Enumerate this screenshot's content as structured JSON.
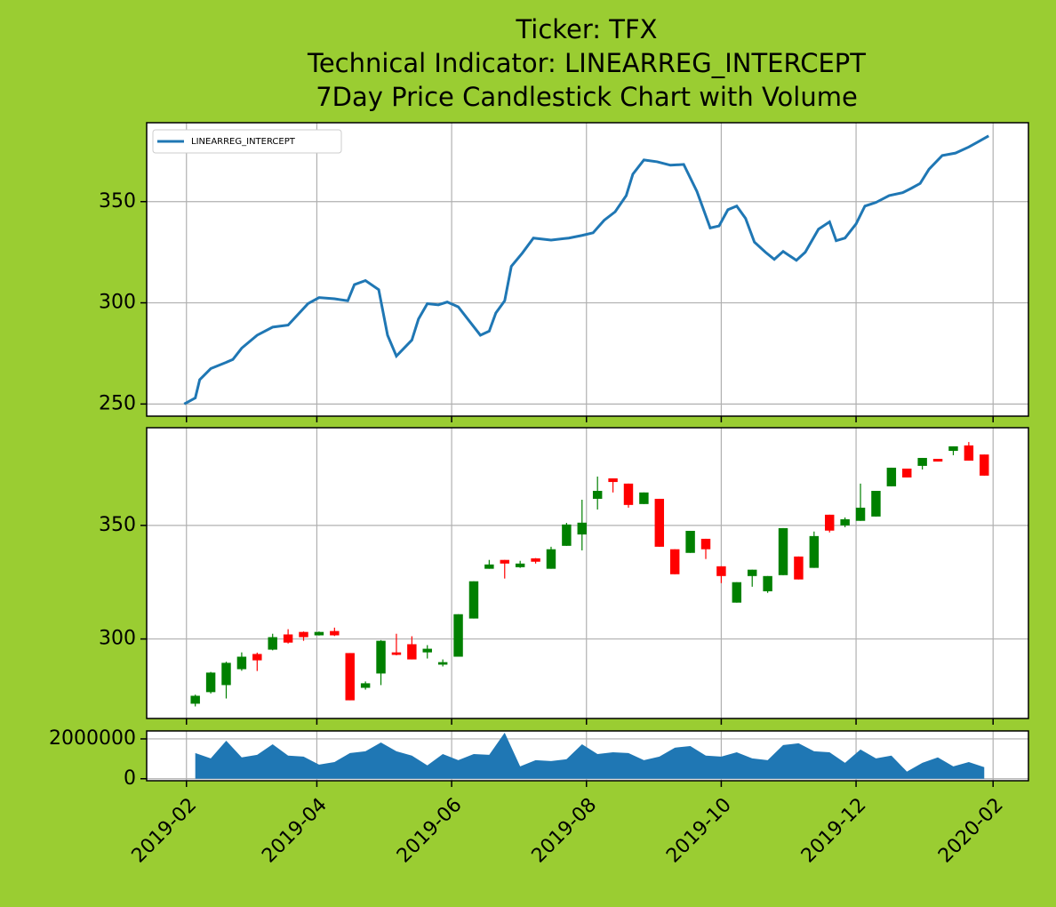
{
  "chart_data": [
    {
      "type": "line",
      "title": [
        "Ticker: TFX",
        "Technical Indicator: LINEARREG_INTERCEPT",
        "7Day Price Candlestick Chart with Volume"
      ],
      "xlim": [
        13,
        412
      ],
      "xticks": [
        {
          "value": 31,
          "label": "2019-02"
        },
        {
          "value": 90,
          "label": "2019-04"
        },
        {
          "value": 151,
          "label": "2019-06"
        },
        {
          "value": 212,
          "label": "2019-08"
        },
        {
          "value": 273,
          "label": "2019-10"
        },
        {
          "value": 334,
          "label": "2019-12"
        },
        {
          "value": 396,
          "label": "2020-02"
        }
      ],
      "ylim": [
        244,
        389
      ],
      "yticks": [
        250,
        300,
        350
      ],
      "grid": true,
      "legend": "upper left",
      "series": [
        {
          "name": "LINEARREG_INTERCEPT",
          "color": "#1f77b4",
          "x": [
            30,
            35,
            37,
            42,
            49,
            52,
            56,
            63,
            70,
            77,
            86,
            91,
            98,
            104,
            107,
            112,
            118,
            122,
            126,
            133,
            136,
            140,
            145,
            149,
            154,
            159,
            164,
            168,
            171,
            175,
            178,
            183,
            188,
            196,
            204,
            210,
            215,
            220,
            225,
            230,
            233,
            238,
            244,
            250,
            256,
            262,
            268,
            272,
            276,
            280,
            284,
            288,
            293,
            297,
            301,
            307,
            311,
            317,
            322,
            325,
            329,
            334,
            338,
            343,
            349,
            355,
            359,
            363,
            367,
            373,
            379,
            385,
            389,
            394
          ],
          "values": [
            250,
            253,
            262,
            267.5,
            270.6,
            272,
            277.6,
            284,
            288,
            289,
            299.6,
            302.6,
            302,
            301,
            309,
            311,
            306.5,
            284,
            273.7,
            281.6,
            292,
            299.6,
            299,
            300.4,
            298,
            291,
            284,
            286,
            295,
            301,
            318,
            324.6,
            332,
            331,
            332,
            333.3,
            334.6,
            340.8,
            345,
            353,
            363.6,
            370.6,
            369.7,
            368,
            368.4,
            355,
            337,
            338,
            346,
            347.8,
            341.7,
            330,
            325,
            321.5,
            325.4,
            321,
            325,
            336.4,
            340,
            330.7,
            332,
            339,
            347.8,
            349.6,
            353,
            354.4,
            356.6,
            359,
            366,
            372.8,
            374,
            377,
            379.4,
            382.5
          ]
        }
      ]
    },
    {
      "type": "candlestick",
      "xlim": [
        13,
        412
      ],
      "xticks": [
        {
          "value": 31,
          "label": "2019-02"
        },
        {
          "value": 90,
          "label": "2019-04"
        },
        {
          "value": 151,
          "label": "2019-06"
        },
        {
          "value": 212,
          "label": "2019-08"
        },
        {
          "value": 273,
          "label": "2019-10"
        },
        {
          "value": 334,
          "label": "2019-12"
        },
        {
          "value": 396,
          "label": "2020-02"
        }
      ],
      "ylim": [
        265,
        393
      ],
      "yticks": [
        300,
        350
      ],
      "grid": true,
      "up_color": "#008000",
      "down_color": "#ff0000",
      "x": [
        35,
        42,
        49,
        56,
        63,
        70,
        77,
        84,
        91,
        98,
        105,
        112,
        119,
        126,
        133,
        140,
        147,
        154,
        161,
        168,
        175,
        182,
        189,
        196,
        203,
        210,
        217,
        224,
        231,
        238,
        245,
        252,
        259,
        266,
        273,
        280,
        287,
        294,
        301,
        308,
        315,
        322,
        329,
        336,
        343,
        350,
        357,
        364,
        371,
        378,
        385,
        392
      ],
      "open": [
        271.5,
        276.6,
        279.7,
        286.7,
        293.4,
        295.3,
        302,
        303.1,
        301.6,
        303.5,
        293.8,
        278.5,
        284.8,
        294.1,
        297.7,
        294.1,
        288.7,
        292.2,
        309,
        330.9,
        334.8,
        331.6,
        335.5,
        330.9,
        341,
        346,
        361.7,
        370.7,
        368.4,
        359.4,
        361.7,
        339.5,
        337.9,
        344.1,
        332,
        316,
        327.7,
        321,
        328.1,
        336.3,
        331.3,
        354.7,
        350,
        352,
        353.9,
        367.2,
        375,
        376.2,
        379.3,
        382.8,
        385.2,
        381.2
      ],
      "high": [
        275.5,
        285.5,
        290,
        294.1,
        294,
        302.3,
        304.3,
        303.3,
        303.3,
        305,
        293.8,
        281.3,
        299.5,
        302.3,
        301.2,
        297.3,
        291,
        310.9,
        325.4,
        334.8,
        334.8,
        334.4,
        335.6,
        340.6,
        351.1,
        361.3,
        371.5,
        370.7,
        368.4,
        364.5,
        361.7,
        339.5,
        347.6,
        344.1,
        332,
        325,
        330.5,
        327.7,
        348.8,
        336.3,
        347.3,
        354.7,
        353.5,
        368.4,
        365.2,
        375.4,
        375,
        379.7,
        379.3,
        384.8,
        386.7,
        381.2
      ],
      "low": [
        270.3,
        276,
        273.8,
        286,
        285.9,
        295,
        298,
        299.2,
        301.5,
        301.3,
        273,
        277.7,
        279.7,
        292.8,
        291,
        291.4,
        287.9,
        292.2,
        309,
        330.9,
        326.6,
        331.3,
        333.2,
        330.9,
        341,
        339,
        357,
        364.5,
        357.8,
        359.4,
        340.6,
        328.5,
        337.9,
        335.2,
        324.6,
        316,
        323,
        320.3,
        328.1,
        326.2,
        331.3,
        346.9,
        349.2,
        352,
        353.9,
        367.2,
        371.1,
        374.6,
        378.1,
        380.9,
        378.5,
        371.9
      ],
      "close": [
        275,
        285.2,
        289.5,
        292.2,
        290.6,
        300.8,
        298.4,
        300.8,
        303.1,
        301.6,
        273,
        280.5,
        299.2,
        293,
        291,
        295.7,
        289.8,
        310.9,
        325.4,
        332.8,
        333.2,
        333.2,
        334,
        339.5,
        350.4,
        351.2,
        365.2,
        369.1,
        359,
        364.5,
        340.6,
        328.5,
        347.6,
        339.5,
        327.7,
        325,
        330.5,
        327.7,
        348.8,
        326.2,
        345.3,
        347.7,
        352.7,
        357.8,
        365.2,
        375.4,
        371.1,
        379.7,
        378.1,
        384.8,
        378.5,
        371.9
      ]
    },
    {
      "type": "area",
      "xlim": [
        13,
        412
      ],
      "xticks": [
        {
          "value": 31,
          "label": "2019-02"
        },
        {
          "value": 90,
          "label": "2019-04"
        },
        {
          "value": 151,
          "label": "2019-06"
        },
        {
          "value": 212,
          "label": "2019-08"
        },
        {
          "value": 273,
          "label": "2019-10"
        },
        {
          "value": 334,
          "label": "2019-12"
        },
        {
          "value": 396,
          "label": "2020-02"
        }
      ],
      "ylim": [
        -100000,
        2400000
      ],
      "yticks": [
        0,
        2000000
      ],
      "grid": true,
      "color": "#1f77b4",
      "x": [
        35,
        42,
        49,
        56,
        63,
        70,
        77,
        84,
        91,
        98,
        105,
        112,
        119,
        126,
        133,
        140,
        147,
        154,
        161,
        168,
        175,
        182,
        189,
        196,
        203,
        210,
        217,
        224,
        231,
        238,
        245,
        252,
        259,
        266,
        273,
        280,
        287,
        294,
        301,
        308,
        315,
        322,
        329,
        336,
        343,
        350,
        357,
        364,
        371,
        378,
        385,
        392
      ],
      "values": [
        1290000,
        1020000,
        1910000,
        1070000,
        1200000,
        1730000,
        1160000,
        1110000,
        710000,
        840000,
        1290000,
        1380000,
        1820000,
        1380000,
        1160000,
        670000,
        1240000,
        930000,
        1240000,
        1200000,
        2310000,
        620000,
        930000,
        890000,
        980000,
        1730000,
        1240000,
        1330000,
        1290000,
        930000,
        1110000,
        1560000,
        1640000,
        1160000,
        1110000,
        1330000,
        1020000,
        930000,
        1690000,
        1780000,
        1380000,
        1330000,
        800000,
        1470000,
        1020000,
        1160000,
        360000,
        800000,
        1070000,
        620000,
        840000,
        580000
      ]
    }
  ]
}
